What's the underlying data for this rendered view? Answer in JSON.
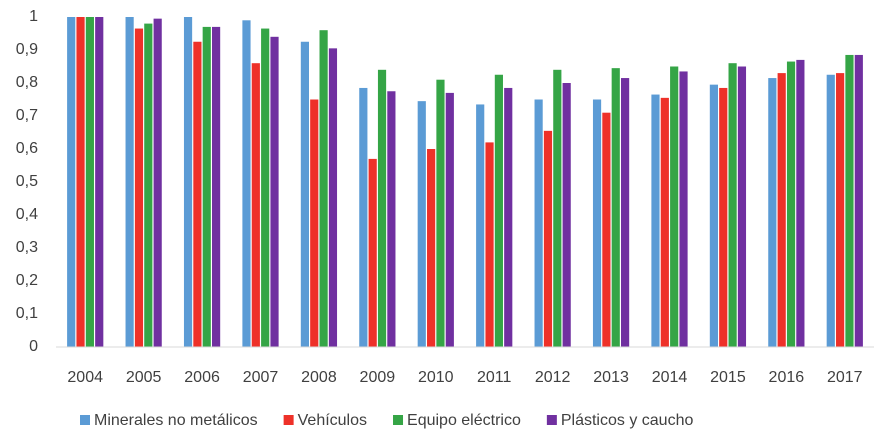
{
  "chart_data": {
    "type": "bar",
    "categories": [
      "2004",
      "2005",
      "2006",
      "2007",
      "2008",
      "2009",
      "2010",
      "2011",
      "2012",
      "2013",
      "2014",
      "2015",
      "2016",
      "2017"
    ],
    "series": [
      {
        "name": "Minerales no metálicos",
        "color": "#5b9bd5",
        "values": [
          1,
          1,
          1,
          0.99,
          0.925,
          0.785,
          0.745,
          0.735,
          0.75,
          0.75,
          0.765,
          0.795,
          0.815,
          0.825
        ]
      },
      {
        "name": "Vehículos",
        "color": "#ee3129",
        "values": [
          1,
          0.965,
          0.925,
          0.86,
          0.75,
          0.57,
          0.6,
          0.62,
          0.655,
          0.71,
          0.755,
          0.785,
          0.83,
          0.83
        ]
      },
      {
        "name": "Equipo eléctrico",
        "color": "#35a546",
        "values": [
          1,
          0.98,
          0.97,
          0.965,
          0.96,
          0.84,
          0.81,
          0.825,
          0.84,
          0.845,
          0.85,
          0.86,
          0.865,
          0.885
        ]
      },
      {
        "name": "Plásticos y caucho",
        "color": "#7030a0",
        "values": [
          1,
          0.995,
          0.97,
          0.94,
          0.905,
          0.775,
          0.77,
          0.785,
          0.8,
          0.815,
          0.835,
          0.85,
          0.87,
          0.885
        ]
      }
    ],
    "ylim": [
      0,
      1
    ],
    "yticks": [
      0,
      {
        "value": 0.1,
        "label": "0,1"
      },
      {
        "value": 0.2,
        "label": "0,2"
      },
      {
        "value": 0.3,
        "label": "0,3"
      },
      {
        "value": 0.4,
        "label": "0,4"
      },
      {
        "value": 0.5,
        "label": "0,5"
      },
      {
        "value": 0.6,
        "label": "0,6"
      },
      {
        "value": 0.7,
        "label": "0,7"
      },
      {
        "value": 0.8,
        "label": "0,8"
      },
      {
        "value": 0.9,
        "label": "0,9"
      },
      1
    ],
    "grid": false,
    "legend": "bottom"
  }
}
